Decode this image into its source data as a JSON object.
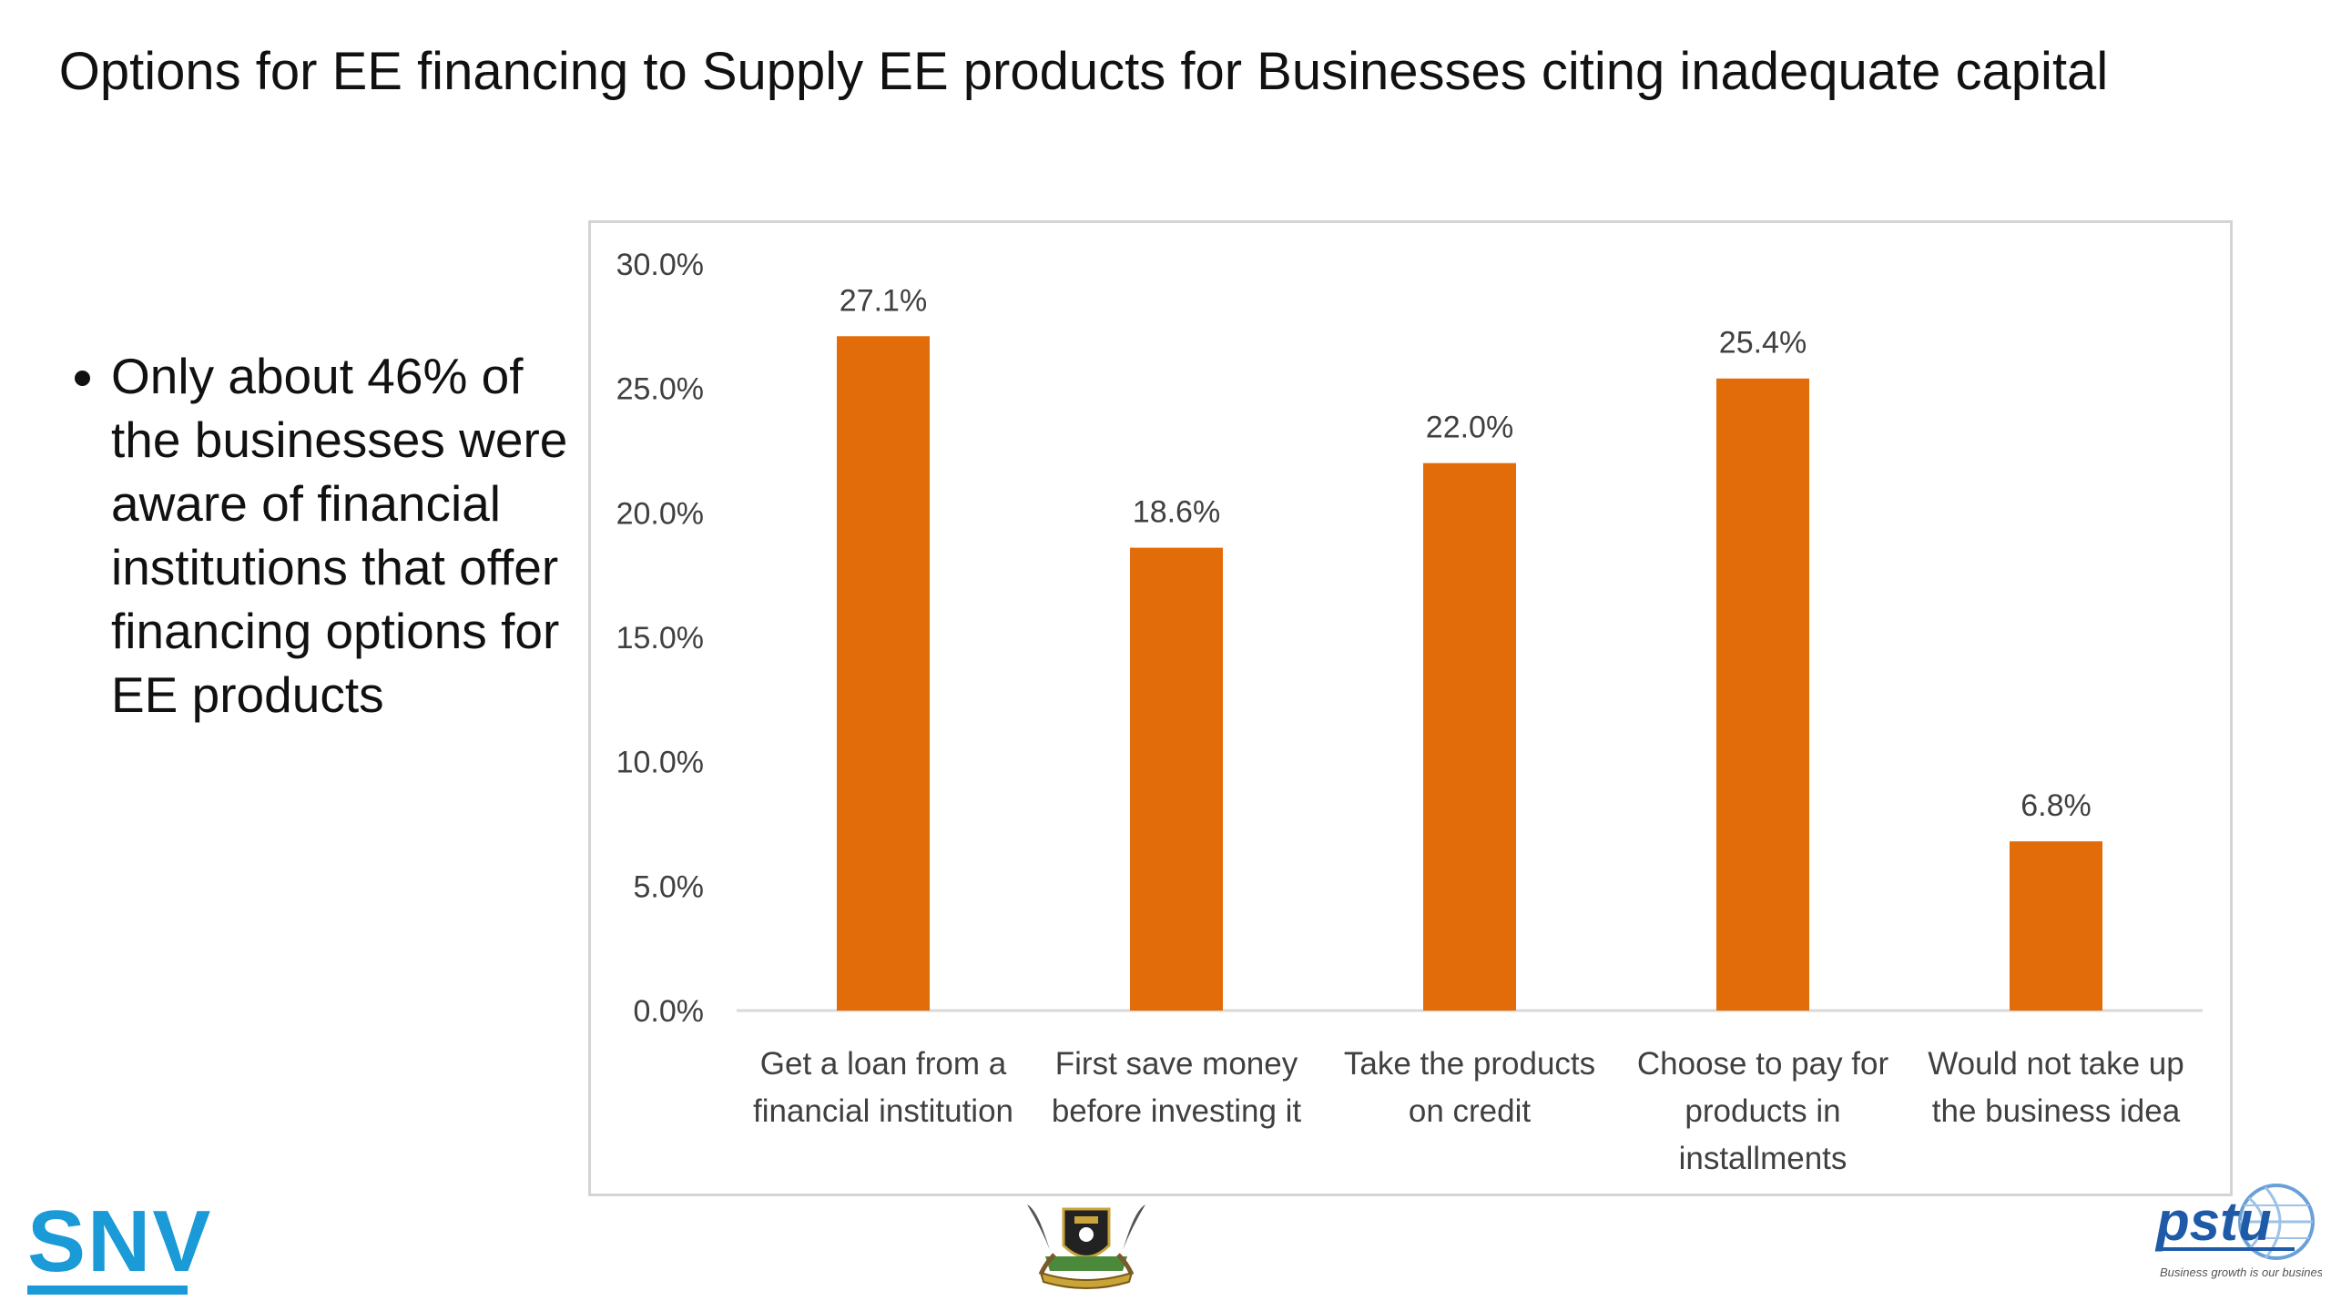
{
  "slide": {
    "title": "Options for EE financing to Supply EE products for Businesses citing inadequate capital",
    "bullet": "Only about 46% of the businesses were aware of financial institutions that offer financing options for EE products"
  },
  "logos": {
    "left": "SNV",
    "center": "uganda-coat-of-arms",
    "right": "pstu",
    "right_tagline": "Business growth is our business"
  },
  "colors": {
    "bar": "#E36C0A",
    "axis": "#d9d9d9",
    "text": "#404040",
    "snv": "#1a9ad6",
    "pstu": "#1e5aa8"
  },
  "chart_data": {
    "type": "bar",
    "categories": [
      [
        "Get a loan from a",
        "financial institution"
      ],
      [
        "First save money",
        "before investing it"
      ],
      [
        "Take the products",
        "on credit"
      ],
      [
        "Choose to pay for",
        "products in",
        "installments"
      ],
      [
        "Would not take up",
        "the business idea"
      ]
    ],
    "values": [
      27.1,
      18.6,
      22.0,
      25.4,
      6.8
    ],
    "data_labels": [
      "27.1%",
      "18.6%",
      "22.0%",
      "25.4%",
      "6.8%"
    ],
    "y_ticks": [
      0,
      5,
      10,
      15,
      20,
      25,
      30
    ],
    "y_tick_labels": [
      "0.0%",
      "5.0%",
      "10.0%",
      "15.0%",
      "20.0%",
      "25.0%",
      "30.0%"
    ],
    "ylim": [
      0,
      30
    ],
    "grid": false,
    "legend": "none"
  }
}
